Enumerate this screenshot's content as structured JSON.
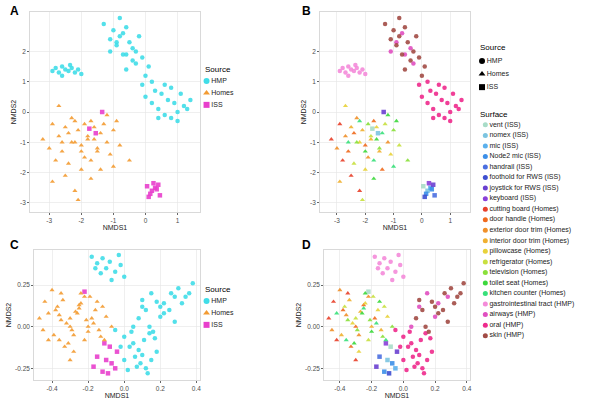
{
  "chart_data": [
    {
      "type": "scatter",
      "panels": [
        "A",
        "B"
      ],
      "x_label": "NMDS1",
      "y_label": "NMDS2",
      "grid": true,
      "xlim": [
        -3.6,
        1.7
      ],
      "ylim": [
        -3.3,
        3.3
      ],
      "xticks": [
        -3,
        -2,
        -1,
        0,
        1
      ],
      "yticks": [
        -3,
        -2,
        -1,
        0,
        1,
        2
      ],
      "series": [
        {
          "name": "vent (ISS)",
          "x": [
            0.05,
            -1.75
          ],
          "y": [
            -2.45,
            -0.55
          ]
        },
        {
          "name": "nomex (ISS)",
          "x": [
            0.2,
            -1.55
          ],
          "y": [
            -2.6,
            -0.7
          ]
        },
        {
          "name": "mic (ISS)",
          "x": [
            0.3
          ],
          "y": [
            -2.5
          ]
        },
        {
          "name": "Node2 mic (ISS)",
          "x": [
            0.15,
            0.35
          ],
          "y": [
            -2.7,
            -2.55
          ]
        },
        {
          "name": "handrail (ISS)",
          "x": [
            0.45
          ],
          "y": [
            -2.75
          ]
        },
        {
          "name": "foothold for RWS (ISS)",
          "x": [
            0.1
          ],
          "y": [
            -2.8
          ]
        },
        {
          "name": "joystick for RWS (ISS)",
          "x": [
            0.4,
            -1.35
          ],
          "y": [
            -2.4,
            0.0
          ]
        },
        {
          "name": "keyboard (ISS)",
          "x": [
            0.25
          ],
          "y": [
            -2.35
          ]
        },
        {
          "name": "cutting board (Homes)",
          "x": [
            -3.2,
            -2.8,
            -2.5,
            -2.9,
            -2.2
          ],
          "y": [
            -0.9,
            -1.6,
            -2.1,
            -0.4,
            -2.6
          ]
        },
        {
          "name": "door handle (Homes)",
          "x": [
            -2.4,
            -2.0,
            -1.7,
            -2.6,
            -1.4
          ],
          "y": [
            -0.7,
            -1.1,
            -0.3,
            -1.3,
            -1.9
          ]
        },
        {
          "name": "exterior door trim (Homes)",
          "x": [
            -3.0,
            -2.3,
            -1.9,
            -2.7,
            -1.2
          ],
          "y": [
            -1.2,
            -0.2,
            -1.5,
            -0.8,
            -1.0
          ]
        },
        {
          "name": "interior door trim (Homes)",
          "x": [
            -2.1,
            -1.8,
            -2.5,
            -1.5,
            -2.9
          ],
          "y": [
            -0.6,
            -0.9,
            -0.5,
            -1.3,
            -2.3
          ]
        },
        {
          "name": "pillowcase (Homes)",
          "x": [
            -2.2,
            -1.6,
            -2.0,
            -1.1,
            -2.7
          ],
          "y": [
            -1.0,
            -0.5,
            -1.9,
            -1.4,
            0.2
          ]
        },
        {
          "name": "refrigerator (Homes)",
          "x": [
            -1.8,
            -1.3,
            -2.4,
            -0.8,
            -2.1
          ],
          "y": [
            -0.8,
            -0.4,
            -1.7,
            -1.1,
            -2.9
          ]
        },
        {
          "name": "television (Homes)",
          "x": [
            -1.9,
            -1.5,
            -1.0,
            -2.3,
            -0.5
          ],
          "y": [
            -0.4,
            -1.2,
            -0.6,
            -1.0,
            -1.6
          ]
        },
        {
          "name": "toilet seat (Homes)",
          "x": [
            -1.6,
            -1.2,
            -2.0,
            -0.9,
            -1.7
          ],
          "y": [
            -0.9,
            -0.1,
            -1.3,
            -0.3,
            -2.2
          ]
        },
        {
          "name": "kitchen counter (Homes)",
          "x": [
            -1.4,
            -1.7,
            -2.2,
            -1.0,
            -2.6
          ],
          "y": [
            -0.7,
            -1.6,
            -0.3,
            -1.8,
            -1.0
          ]
        },
        {
          "name": "gastrointestinal tract (HMP)",
          "x": [
            -2.9,
            -2.8,
            -2.7,
            -2.6,
            -2.5,
            -2.4,
            -2.3,
            -2.2,
            -2.1,
            -2.0,
            -2.6,
            -2.35
          ],
          "y": [
            1.35,
            1.45,
            1.3,
            1.5,
            1.4,
            1.35,
            1.45,
            1.3,
            1.4,
            1.25,
            1.2,
            1.55
          ]
        },
        {
          "name": "airways (HMP)",
          "x": [
            -0.9,
            -0.6,
            -0.3,
            -0.7,
            -0.4,
            -1.1
          ],
          "y": [
            2.3,
            1.9,
            1.6,
            2.6,
            2.1,
            2.0
          ]
        },
        {
          "name": "oral (HMP)",
          "x": [
            0.0,
            0.2,
            0.4,
            0.6,
            0.8,
            1.0,
            1.2,
            1.4,
            0.3,
            0.5,
            0.7,
            0.9,
            1.1,
            1.3,
            0.6,
            0.8,
            1.0,
            0.4,
            0.2,
            -0.1
          ],
          "y": [
            0.5,
            0.3,
            0.1,
            -0.1,
            -0.2,
            0.0,
            0.2,
            0.4,
            0.7,
            0.6,
            0.4,
            0.3,
            0.6,
            0.1,
            0.9,
            0.8,
            -0.3,
            -0.2,
            1.0,
            0.9
          ]
        },
        {
          "name": "skin (HMP)",
          "x": [
            -1.3,
            -1.0,
            -0.8,
            -0.6,
            -0.5,
            -0.3,
            -0.1,
            0.1,
            -0.9,
            -0.7,
            -0.4,
            -1.1,
            -0.2,
            0.0,
            -0.6,
            -0.8
          ],
          "y": [
            2.9,
            2.7,
            2.5,
            2.8,
            2.3,
            2.0,
            1.8,
            1.5,
            2.2,
            1.9,
            1.7,
            2.4,
            2.5,
            1.2,
            1.4,
            3.1
          ]
        }
      ]
    },
    {
      "type": "scatter",
      "panels": [
        "C",
        "D"
      ],
      "x_label": "NMDS1",
      "y_label": "NMDS2",
      "grid": true,
      "xlim": [
        -0.5,
        0.42
      ],
      "ylim": [
        -0.32,
        0.46
      ],
      "xticks": [
        -0.4,
        -0.2,
        {
          "value": 0,
          "label": "0.0"
        },
        0.2,
        0.4
      ],
      "yticks": [
        -0.25,
        {
          "value": 0,
          "label": "0.00"
        },
        0.25
      ],
      "series": [
        {
          "name": "vent (ISS)",
          "x": [
            -0.22,
            -0.08
          ],
          "y": [
            0.21,
            -0.12
          ]
        },
        {
          "name": "nomex (ISS)",
          "x": [
            -0.1
          ],
          "y": [
            -0.2
          ]
        },
        {
          "name": "mic (ISS)",
          "x": [
            -0.05
          ],
          "y": [
            -0.25
          ]
        },
        {
          "name": "Node2 mic (ISS)",
          "x": [
            -0.12,
            -0.07
          ],
          "y": [
            -0.27,
            -0.22
          ]
        },
        {
          "name": "handrail (ISS)",
          "x": [
            -0.15
          ],
          "y": [
            -0.18
          ]
        },
        {
          "name": "foothold for RWS (ISS)",
          "x": [
            -0.09
          ],
          "y": [
            -0.28
          ]
        },
        {
          "name": "joystick for RWS (ISS)",
          "x": [
            -0.04,
            -0.17
          ],
          "y": [
            -0.15,
            -0.24
          ]
        },
        {
          "name": "keyboard (ISS)",
          "x": [
            -0.11
          ],
          "y": [
            -0.1
          ]
        },
        {
          "name": "cutting board (Homes)",
          "x": [
            -0.47,
            -0.42,
            -0.35,
            -0.44,
            -0.3
          ],
          "y": [
            0.05,
            -0.08,
            0.2,
            0.15,
            -0.2
          ]
        },
        {
          "name": "door handle (Homes)",
          "x": [
            -0.38,
            -0.3,
            -0.25,
            -0.33,
            -0.18
          ],
          "y": [
            0.1,
            0.0,
            0.13,
            -0.12,
            0.05
          ]
        },
        {
          "name": "exterior door trim (Homes)",
          "x": [
            -0.45,
            -0.36,
            -0.28,
            -0.4,
            -0.22
          ],
          "y": [
            -0.02,
            0.07,
            -0.05,
            0.22,
            0.18
          ]
        },
        {
          "name": "interior door trim (Homes)",
          "x": [
            -0.34,
            -0.27,
            -0.2,
            -0.39,
            -0.14
          ],
          "y": [
            0.16,
            0.09,
            0.0,
            -0.05,
            -0.02
          ]
        },
        {
          "name": "pillowcase (Homes)",
          "x": [
            -0.32,
            -0.24,
            -0.16,
            -0.28,
            -0.1
          ],
          "y": [
            0.02,
            0.14,
            0.1,
            -0.15,
            0.06
          ]
        },
        {
          "name": "refrigerator (Homes)",
          "x": [
            -0.3,
            -0.22,
            -0.37,
            -0.12,
            -0.19
          ],
          "y": [
            0.05,
            -0.08,
            0.12,
            0.12,
            0.18
          ]
        },
        {
          "name": "television (Homes)",
          "x": [
            -0.29,
            -0.21,
            -0.13,
            -0.35,
            -0.07
          ],
          "y": [
            -0.02,
            0.04,
            -0.06,
            0.04,
            0.0
          ]
        },
        {
          "name": "toilet seat (Homes)",
          "x": [
            -0.26,
            -0.2,
            -0.31,
            -0.15,
            -0.24
          ],
          "y": [
            0.08,
            -0.03,
            -0.1,
            0.15,
            0.2
          ]
        },
        {
          "name": "kitchen counter (Homes)",
          "x": [
            -0.36,
            -0.25,
            -0.17,
            -0.42,
            -0.11
          ],
          "y": [
            -0.08,
            0.11,
            0.02,
            0.08,
            -0.08
          ]
        },
        {
          "name": "gastrointestinal tract (HMP)",
          "x": [
            -0.18,
            -0.15,
            -0.12,
            -0.1,
            -0.08,
            -0.05,
            -0.02,
            0.0,
            -0.13,
            -0.07,
            -0.16,
            -0.03
          ],
          "y": [
            0.42,
            0.38,
            0.41,
            0.35,
            0.39,
            0.33,
            0.37,
            0.3,
            0.32,
            0.28,
            0.35,
            0.43
          ]
        },
        {
          "name": "airways (HMP)",
          "x": [
            0.1,
            0.15,
            0.2,
            0.28,
            0.05,
            0.22
          ],
          "y": [
            0.12,
            0.2,
            0.06,
            0.18,
            0.0,
            0.14
          ]
        },
        {
          "name": "oral (HMP)",
          "x": [
            -0.05,
            0.0,
            0.03,
            0.06,
            0.09,
            0.12,
            0.15,
            0.18,
            0.02,
            0.05,
            0.08,
            0.11,
            0.14,
            0.0,
            0.04,
            0.07,
            0.1,
            -0.02,
            0.13,
            0.17
          ],
          "y": [
            -0.02,
            -0.06,
            -0.12,
            -0.18,
            -0.22,
            -0.25,
            -0.2,
            -0.15,
            -0.26,
            -0.1,
            -0.14,
            -0.08,
            -0.04,
            -0.2,
            -0.03,
            -0.24,
            -0.17,
            -0.12,
            -0.28,
            -0.07
          ]
        },
        {
          "name": "skin (HMP)",
          "x": [
            0.08,
            0.12,
            0.18,
            0.22,
            0.26,
            0.3,
            0.34,
            0.38,
            0.14,
            0.2,
            0.25,
            0.32,
            0.16,
            0.1,
            0.28,
            0.36
          ],
          "y": [
            0.05,
            0.1,
            0.15,
            0.08,
            0.2,
            0.23,
            0.18,
            0.26,
            0.0,
            0.12,
            0.1,
            0.14,
            -0.03,
            0.16,
            0.03,
            0.2
          ]
        }
      ]
    }
  ],
  "source_title": "Source",
  "surface_title": "Surface",
  "sources": [
    {
      "name": "HMP",
      "color": "#40DDE8",
      "marker": "circle"
    },
    {
      "name": "Homes",
      "color": "#F39B32",
      "marker": "triangle"
    },
    {
      "name": "ISS",
      "color": "#E83FCC",
      "marker": "square"
    }
  ],
  "surfaces": [
    {
      "name": "vent (ISS)",
      "source": "ISS",
      "color": "#A8DCC8"
    },
    {
      "name": "nomex (ISS)",
      "source": "ISS",
      "color": "#7CC4E0"
    },
    {
      "name": "mic (ISS)",
      "source": "ISS",
      "color": "#5BB0EC"
    },
    {
      "name": "Node2 mic (ISS)",
      "source": "ISS",
      "color": "#3C8FE8"
    },
    {
      "name": "handrail (ISS)",
      "source": "ISS",
      "color": "#4B6FE0"
    },
    {
      "name": "foothold for RWS (ISS)",
      "source": "ISS",
      "color": "#3E4FD0"
    },
    {
      "name": "joystick for RWS (ISS)",
      "source": "ISS",
      "color": "#6A40D0"
    },
    {
      "name": "keyboard (ISS)",
      "source": "ISS",
      "color": "#8A3FD8"
    },
    {
      "name": "cutting board (Homes)",
      "source": "Homes",
      "color": "#E8402A"
    },
    {
      "name": "door handle (Homes)",
      "source": "Homes",
      "color": "#F06A1E"
    },
    {
      "name": "exterior door trim (Homes)",
      "source": "Homes",
      "color": "#F0902A"
    },
    {
      "name": "interior door trim (Homes)",
      "source": "Homes",
      "color": "#F0B030"
    },
    {
      "name": "pillowcase (Homes)",
      "source": "Homes",
      "color": "#E8D23A"
    },
    {
      "name": "refrigerator (Homes)",
      "source": "Homes",
      "color": "#C8E040"
    },
    {
      "name": "television (Homes)",
      "source": "Homes",
      "color": "#8AE03A"
    },
    {
      "name": "toilet seat (Homes)",
      "source": "Homes",
      "color": "#3CD83C"
    },
    {
      "name": "kitchen counter (Homes)",
      "source": "Homes",
      "color": "#38E07A"
    },
    {
      "name": "gastrointestinal tract (HMP)",
      "source": "HMP",
      "color": "#F48BD9"
    },
    {
      "name": "airways (HMP)",
      "source": "HMP",
      "color": "#E04FC0"
    },
    {
      "name": "oral (HMP)",
      "source": "HMP",
      "color": "#EE2A8C"
    },
    {
      "name": "skin (HMP)",
      "source": "HMP",
      "color": "#A24B45"
    }
  ]
}
